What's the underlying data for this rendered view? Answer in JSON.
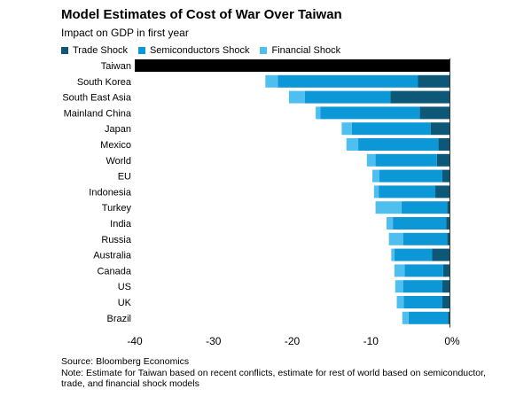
{
  "header": {
    "title": "Model Estimates of Cost of War Over Taiwan",
    "subtitle": "Impact on GDP in first year"
  },
  "legend": [
    {
      "name": "Trade Shock",
      "color": "#0e5877"
    },
    {
      "name": "Semiconductors Shock",
      "color": "#0c97d6"
    },
    {
      "name": "Financial Shock",
      "color": "#4fbff0"
    }
  ],
  "footer": {
    "source": "Source: Bloomberg Economics",
    "note": "Note: Estimate for Taiwan based on recent conflicts, estimate for rest of world based on semiconductor, trade, and financial shock models"
  },
  "chart_data": {
    "type": "bar",
    "orientation": "horizontal",
    "stacked": true,
    "title": "Model Estimates of Cost of War Over Taiwan",
    "subtitle": "Impact on GDP in first year",
    "xlim": [
      -40,
      0
    ],
    "x_ticks": [
      -40,
      -30,
      -20,
      -10,
      0
    ],
    "x_tick_labels": [
      "-40",
      "-30",
      "-20",
      "-10",
      "0%"
    ],
    "categories": [
      "Taiwan",
      "South Korea",
      "South East Asia",
      "Mainland China",
      "Japan",
      "Mexico",
      "World",
      "EU",
      "Indonesia",
      "Turkey",
      "India",
      "Russia",
      "Australia",
      "Canada",
      "US",
      "UK",
      "Brazil"
    ],
    "series": [
      {
        "name": "Trade Shock",
        "color": "#0e5877",
        "values": [
          0,
          -4.0,
          -7.5,
          -3.8,
          -2.4,
          -1.4,
          -1.6,
          -0.9,
          -1.8,
          -0.3,
          -0.4,
          -0.3,
          -2.2,
          -0.8,
          -0.9,
          -0.9,
          -0.2
        ]
      },
      {
        "name": "Semiconductors Shock",
        "color": "#0c97d6",
        "values": [
          0,
          -17.8,
          -10.9,
          -12.6,
          -10.0,
          -10.2,
          -7.8,
          -8.0,
          -7.2,
          -5.8,
          -6.8,
          -5.6,
          -4.8,
          -4.9,
          -5.0,
          -4.9,
          -5.0
        ]
      },
      {
        "name": "Financial Shock",
        "color": "#4fbff0",
        "values": [
          0,
          -1.6,
          -2.0,
          -0.6,
          -1.3,
          -1.5,
          -1.1,
          -0.9,
          -0.6,
          -3.3,
          -0.8,
          -1.8,
          -0.4,
          -1.3,
          -1.0,
          -0.9,
          -0.8
        ]
      }
    ],
    "highlight": {
      "category": "Taiwan",
      "value": -40,
      "color": "#000000"
    },
    "grid": false
  }
}
